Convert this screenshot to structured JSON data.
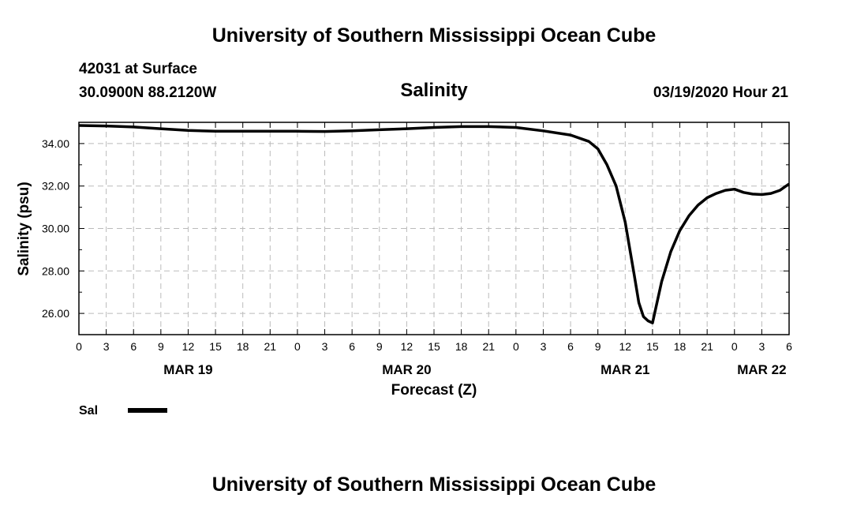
{
  "header": {
    "organization_title": "University of Southern Mississippi Ocean Cube",
    "station_line": "42031 at Surface",
    "coords_line": "30.0900N 88.2120W",
    "date_line": "03/19/2020 Hour 21"
  },
  "footer": {
    "organization_title": "University of Southern Mississippi Ocean Cube"
  },
  "chart_data": {
    "type": "line",
    "title": "Salinity",
    "xlabel": "Forecast (Z)",
    "ylabel": "Salinity (psu)",
    "x_unit": "forecast hours from MAR 19 00Z",
    "xlim": [
      0,
      78
    ],
    "ylim": [
      25,
      35
    ],
    "y_ticks": [
      26,
      28,
      30,
      32,
      34
    ],
    "y_tick_labels": [
      "26.00",
      "28.00",
      "30.00",
      "32.00",
      "34.00"
    ],
    "x_ticks": [
      0,
      3,
      6,
      9,
      12,
      15,
      18,
      21,
      24,
      27,
      30,
      33,
      36,
      39,
      42,
      45,
      48,
      51,
      54,
      57,
      60,
      63,
      66,
      69,
      72,
      75,
      78
    ],
    "x_tick_labels": [
      "0",
      "3",
      "6",
      "9",
      "12",
      "15",
      "18",
      "21",
      "0",
      "3",
      "6",
      "9",
      "12",
      "15",
      "18",
      "21",
      "0",
      "3",
      "6",
      "9",
      "12",
      "15",
      "18",
      "21",
      "0",
      "3",
      "6"
    ],
    "date_labels": [
      {
        "x": 12,
        "label": "MAR 19"
      },
      {
        "x": 36,
        "label": "MAR 20"
      },
      {
        "x": 60,
        "label": "MAR 21"
      },
      {
        "x": 75,
        "label": "MAR 22"
      }
    ],
    "grid": true,
    "legend": {
      "position": "bottom-left",
      "entries": [
        "Sal"
      ]
    },
    "series": [
      {
        "name": "Sal",
        "x": [
          0,
          3,
          6,
          9,
          12,
          15,
          18,
          21,
          24,
          27,
          30,
          33,
          36,
          39,
          42,
          45,
          48,
          51,
          54,
          56,
          57,
          58,
          59,
          60,
          61,
          61.5,
          62,
          62.5,
          63,
          64,
          65,
          66,
          67,
          68,
          69,
          70,
          71,
          72,
          73,
          74,
          75,
          76,
          77,
          78
        ],
        "values": [
          34.85,
          34.83,
          34.78,
          34.7,
          34.62,
          34.58,
          34.58,
          34.58,
          34.58,
          34.57,
          34.6,
          34.65,
          34.7,
          34.76,
          34.8,
          34.8,
          34.76,
          34.6,
          34.4,
          34.1,
          33.75,
          33.0,
          32.0,
          30.3,
          27.8,
          26.5,
          25.85,
          25.65,
          25.55,
          27.5,
          28.9,
          29.9,
          30.6,
          31.1,
          31.45,
          31.65,
          31.8,
          31.85,
          31.7,
          31.62,
          31.6,
          31.65,
          31.8,
          32.1
        ]
      }
    ]
  }
}
